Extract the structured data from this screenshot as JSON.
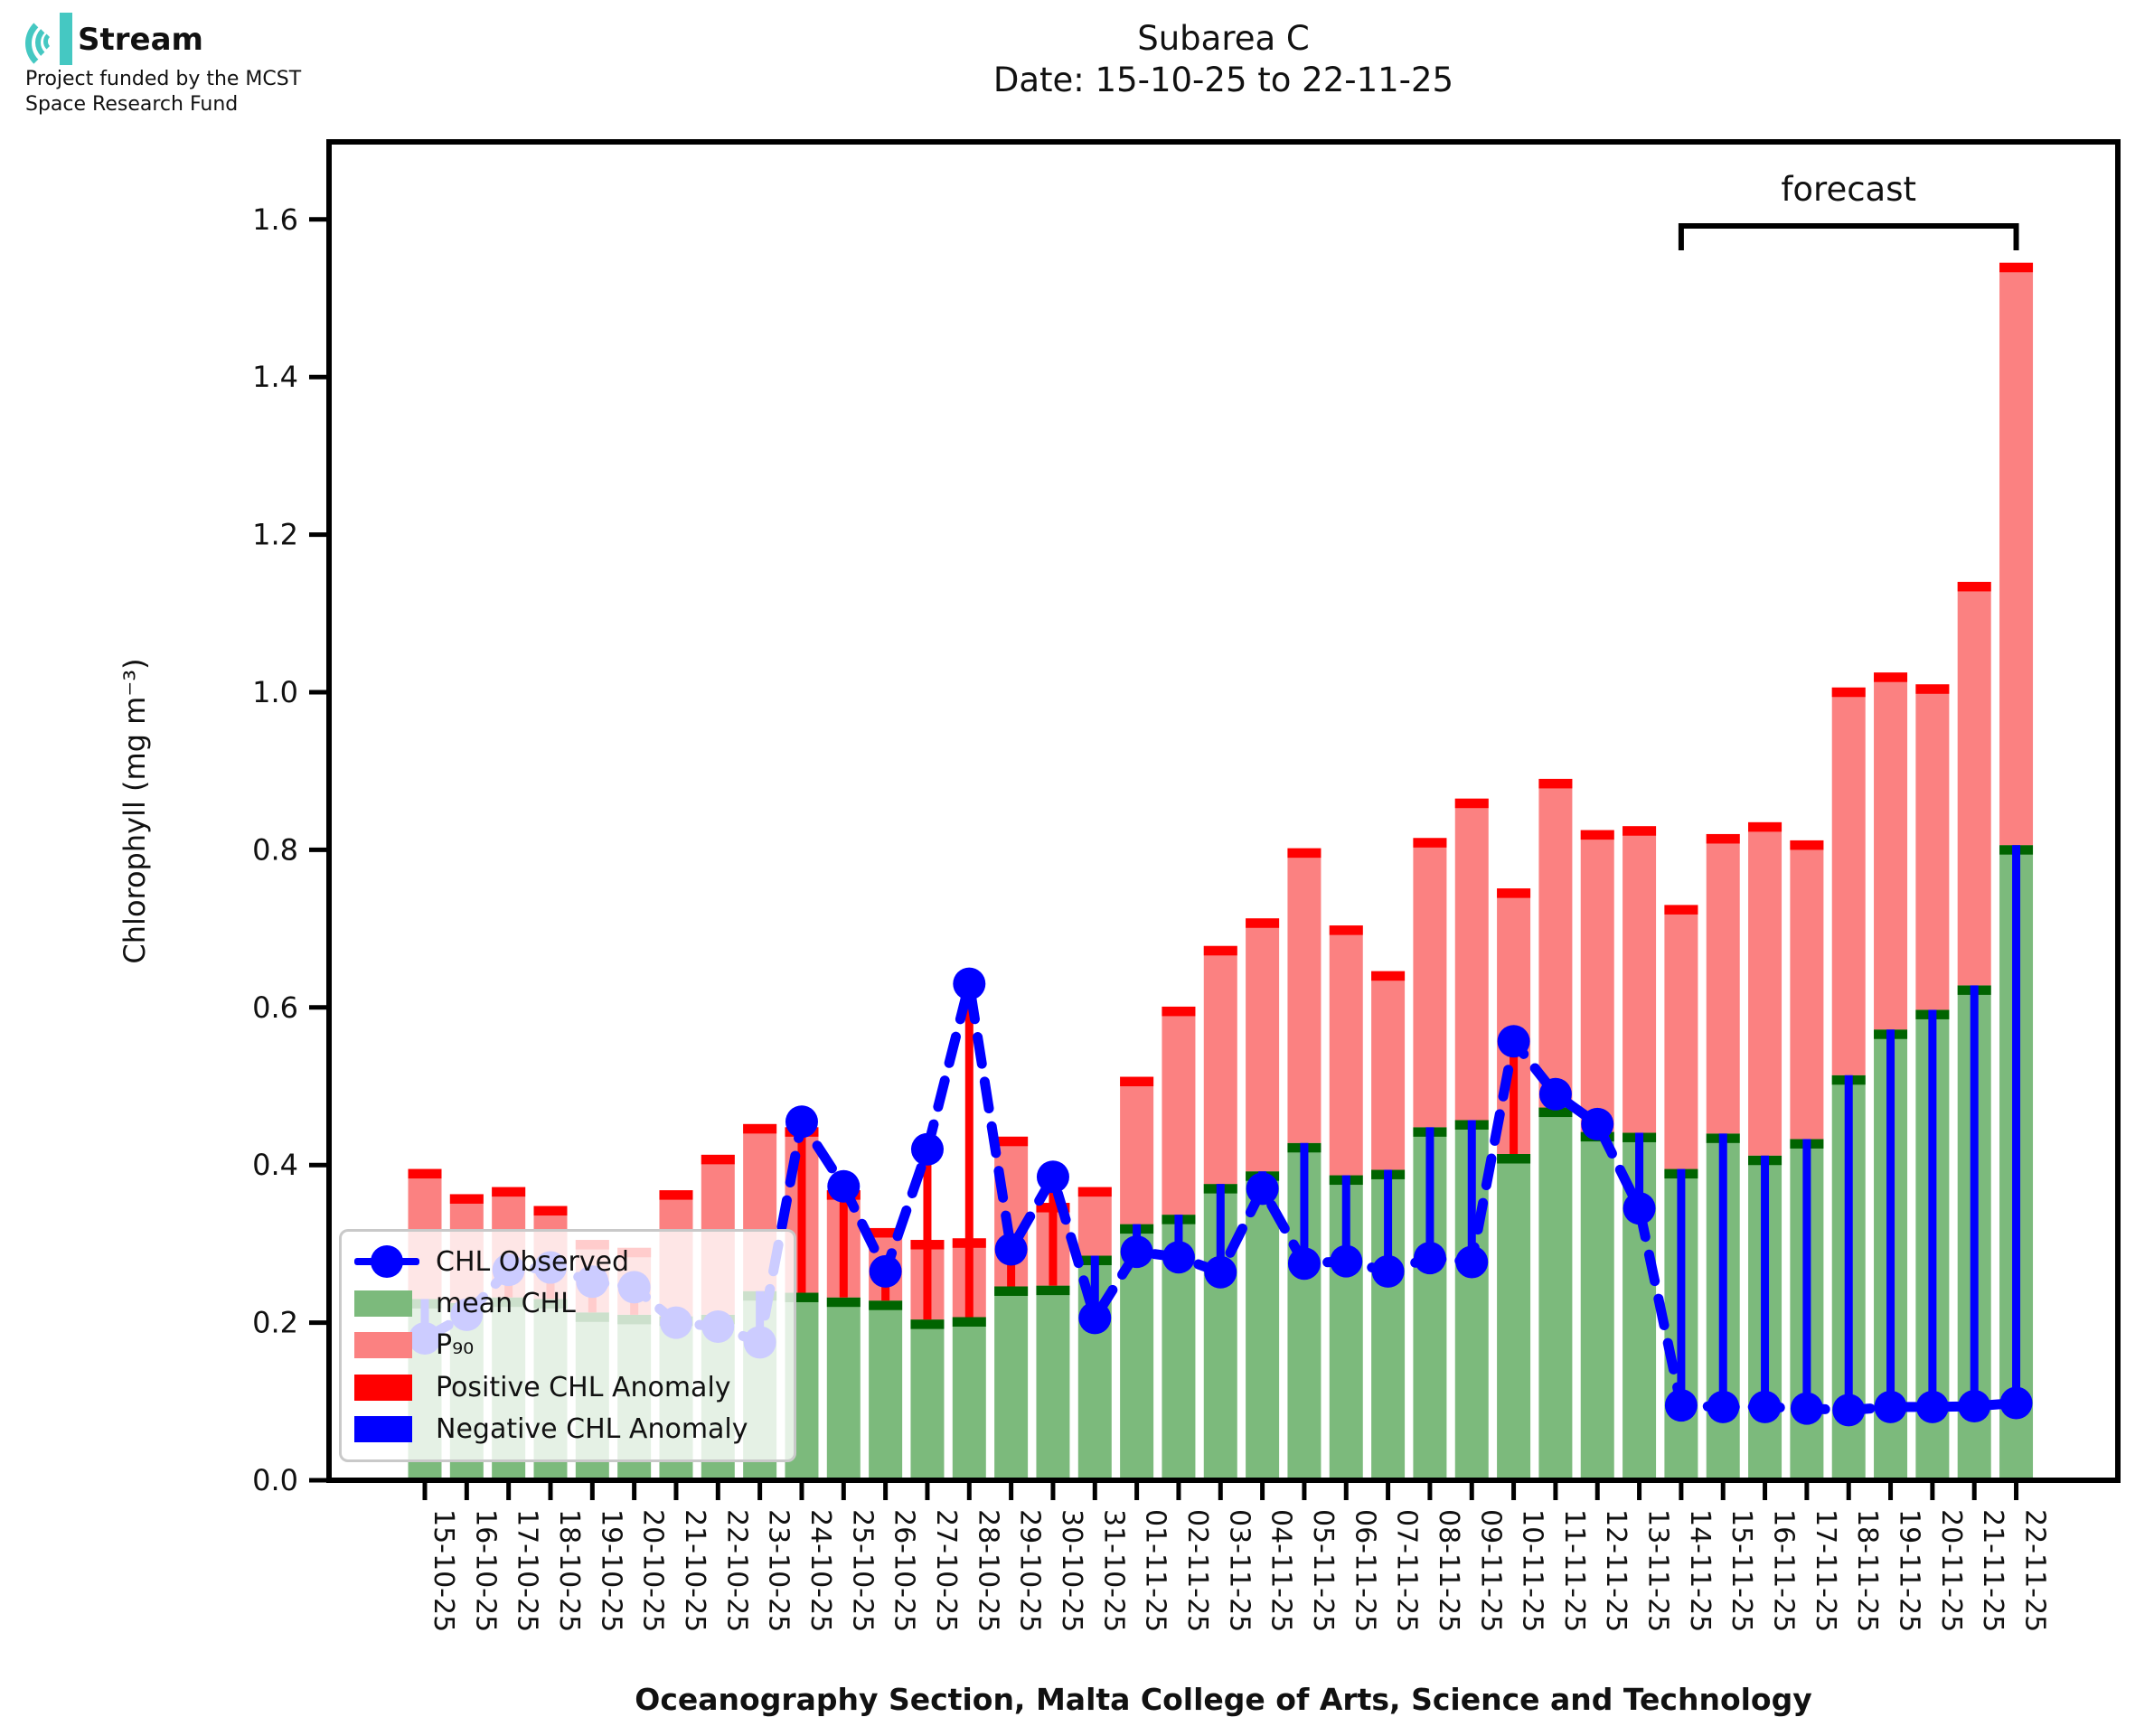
{
  "logo": {
    "brand": "Stream",
    "subtitle_line1": "Project funded by the MCST",
    "subtitle_line2": "Space Research Fund"
  },
  "title": {
    "line1": "Subarea C",
    "line2": "Date: 15-10-25 to 22-11-25"
  },
  "axes": {
    "ylabel": "Chlorophyll (mg m⁻³)",
    "xlabel": "Oceanography Section, Malta College of Arts, Science and Technology",
    "ytick_labels": [
      "0.0",
      "0.2",
      "0.4",
      "0.6",
      "0.8",
      "1.0",
      "1.2",
      "1.4",
      "1.6"
    ],
    "ytick_values": [
      0,
      0.2,
      0.4,
      0.6,
      0.8,
      1.0,
      1.2,
      1.4,
      1.6
    ],
    "ylim": [
      0,
      1.7
    ],
    "grid": false
  },
  "annotation": {
    "forecast_label": "forecast",
    "forecast_start_date": "14-11-25",
    "forecast_end_date": "22-11-25"
  },
  "legend": {
    "position": "lower left",
    "items": [
      {
        "label": "CHL Observed",
        "type": "line-marker",
        "color": "#0000ff"
      },
      {
        "label": "mean CHL",
        "type": "patch",
        "color": "#7cba7c"
      },
      {
        "label": "P₉₀",
        "type": "patch",
        "color": "#fb8181"
      },
      {
        "label": "Positive CHL Anomaly",
        "type": "patch",
        "color": "#ff0000"
      },
      {
        "label": "Negative CHL Anomaly",
        "type": "patch",
        "color": "#0000ff"
      }
    ]
  },
  "colors": {
    "p90_bar": "#fb8181",
    "p90_cap": "#ff0000",
    "mean_bar": "#7cba7c",
    "mean_cap": "#006400",
    "positive_anomaly": "#ff0000",
    "negative_anomaly": "#0000ff",
    "observed": "#0000ff",
    "spine": "#000000",
    "logo_teal": "#45c8c2"
  },
  "chart_data": {
    "type": "bar",
    "title": "Subarea C  Date: 15-10-25 to 22-11-25",
    "xlabel": "Oceanography Section, Malta College of Arts, Science and Technology",
    "ylabel": "Chlorophyll (mg m⁻³)",
    "ylim": [
      0,
      1.7
    ],
    "legend_position": "lower left",
    "categories": [
      "15-10-25",
      "16-10-25",
      "17-10-25",
      "18-10-25",
      "19-10-25",
      "20-10-25",
      "21-10-25",
      "22-10-25",
      "23-10-25",
      "24-10-25",
      "25-10-25",
      "26-10-25",
      "27-10-25",
      "28-10-25",
      "29-10-25",
      "30-10-25",
      "31-10-25",
      "01-11-25",
      "02-11-25",
      "03-11-25",
      "04-11-25",
      "05-11-25",
      "06-11-25",
      "07-11-25",
      "08-11-25",
      "09-11-25",
      "10-11-25",
      "11-11-25",
      "12-11-25",
      "13-11-25",
      "14-11-25",
      "15-11-25",
      "16-11-25",
      "17-11-25",
      "18-11-25",
      "19-11-25",
      "20-11-25",
      "21-11-25",
      "22-11-25"
    ],
    "series": [
      {
        "name": "P90",
        "values": [
          0.395,
          0.363,
          0.372,
          0.348,
          0.305,
          0.295,
          0.368,
          0.413,
          0.452,
          0.448,
          0.368,
          0.32,
          0.305,
          0.307,
          0.436,
          0.352,
          0.372,
          0.512,
          0.601,
          0.678,
          0.713,
          0.802,
          0.704,
          0.646,
          0.815,
          0.865,
          0.751,
          0.89,
          0.825,
          0.83,
          0.73,
          0.82,
          0.835,
          0.812,
          1.006,
          1.025,
          1.01,
          1.14,
          1.545
        ]
      },
      {
        "name": "mean CHL",
        "values": [
          0.23,
          0.225,
          0.232,
          0.23,
          0.213,
          0.21,
          0.208,
          0.21,
          0.24,
          0.238,
          0.232,
          0.228,
          0.204,
          0.207,
          0.246,
          0.247,
          0.285,
          0.325,
          0.337,
          0.376,
          0.392,
          0.428,
          0.387,
          0.394,
          0.448,
          0.457,
          0.414,
          0.473,
          0.442,
          0.441,
          0.395,
          0.44,
          0.412,
          0.433,
          0.514,
          0.572,
          0.597,
          0.628,
          0.806
        ]
      },
      {
        "name": "CHL Observed",
        "values": [
          0.18,
          0.21,
          0.267,
          0.27,
          0.252,
          0.245,
          0.2,
          0.195,
          0.175,
          0.455,
          0.373,
          0.265,
          0.42,
          0.63,
          0.293,
          0.385,
          0.206,
          0.29,
          0.283,
          0.264,
          0.37,
          0.275,
          0.278,
          0.265,
          0.282,
          0.277,
          0.557,
          0.49,
          0.452,
          0.345,
          0.095,
          0.093,
          0.093,
          0.091,
          0.089,
          0.093,
          0.093,
          0.094,
          0.098
        ]
      }
    ],
    "forecast_indices": [
      30,
      31,
      32,
      33,
      34,
      35,
      36,
      37,
      38
    ]
  }
}
